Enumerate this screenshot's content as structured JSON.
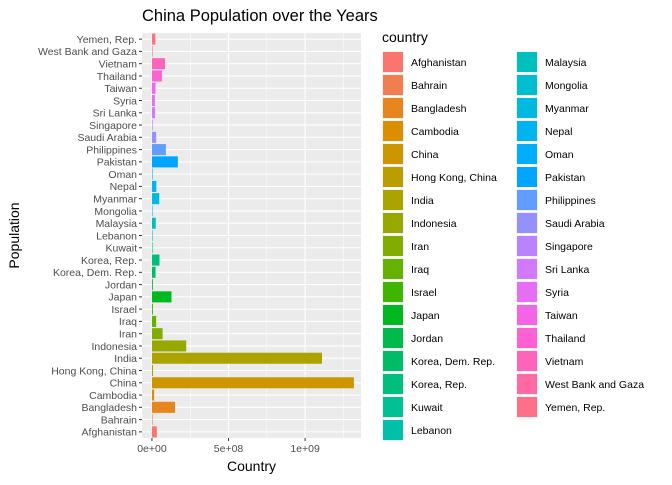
{
  "chart_data": {
    "type": "bar",
    "orientation": "horizontal",
    "title": "China Population over the Years",
    "xlabel": "Country",
    "ylabel": "Population",
    "xlim": [
      -65000000,
      1365000000
    ],
    "x_ticks": [
      0,
      500000000,
      1000000000
    ],
    "x_tick_labels": [
      "0e+00",
      "5e+08",
      "1e+09"
    ],
    "grid": true,
    "legend_title": "country",
    "legend_position": "right",
    "categories": [
      "Afghanistan",
      "Bahrain",
      "Bangladesh",
      "Cambodia",
      "China",
      "Hong Kong, China",
      "India",
      "Indonesia",
      "Iran",
      "Iraq",
      "Israel",
      "Japan",
      "Jordan",
      "Korea, Dem. Rep.",
      "Korea, Rep.",
      "Kuwait",
      "Lebanon",
      "Malaysia",
      "Mongolia",
      "Myanmar",
      "Nepal",
      "Oman",
      "Pakistan",
      "Philippines",
      "Saudi Arabia",
      "Singapore",
      "Sri Lanka",
      "Syria",
      "Taiwan",
      "Thailand",
      "Vietnam",
      "West Bank and Gaza",
      "Yemen, Rep."
    ],
    "values": [
      31889923,
      708573,
      150448339,
      14131858,
      1318683096,
      6980412,
      1110396331,
      223547000,
      69453570,
      27499638,
      6426679,
      127467972,
      6053193,
      23301725,
      49044790,
      2505559,
      3921278,
      24821286,
      2874127,
      47761980,
      28901790,
      3204897,
      169270617,
      91077287,
      27601038,
      4553009,
      20378239,
      19314747,
      23174294,
      65068149,
      85262356,
      4018332,
      22211743
    ],
    "colors": [
      "#F8766D",
      "#F07E4E",
      "#E7851E",
      "#DA8E00",
      "#CD9600",
      "#BC9D00",
      "#ABA300",
      "#97A900",
      "#81AD00",
      "#66B200",
      "#3EB600",
      "#00B81F",
      "#00BA4C",
      "#00BC67",
      "#00BE7E",
      "#00C094",
      "#00C0A9",
      "#00BFBD",
      "#00BDD0",
      "#00B9E1",
      "#00B4F0",
      "#00ADFA",
      "#00A5FF",
      "#619CFF",
      "#9590FF",
      "#B983FF",
      "#D179FF",
      "#E56FF3",
      "#F365E6",
      "#FD61D3",
      "#FF64BD",
      "#FF69A4",
      "#FF6F88"
    ]
  }
}
